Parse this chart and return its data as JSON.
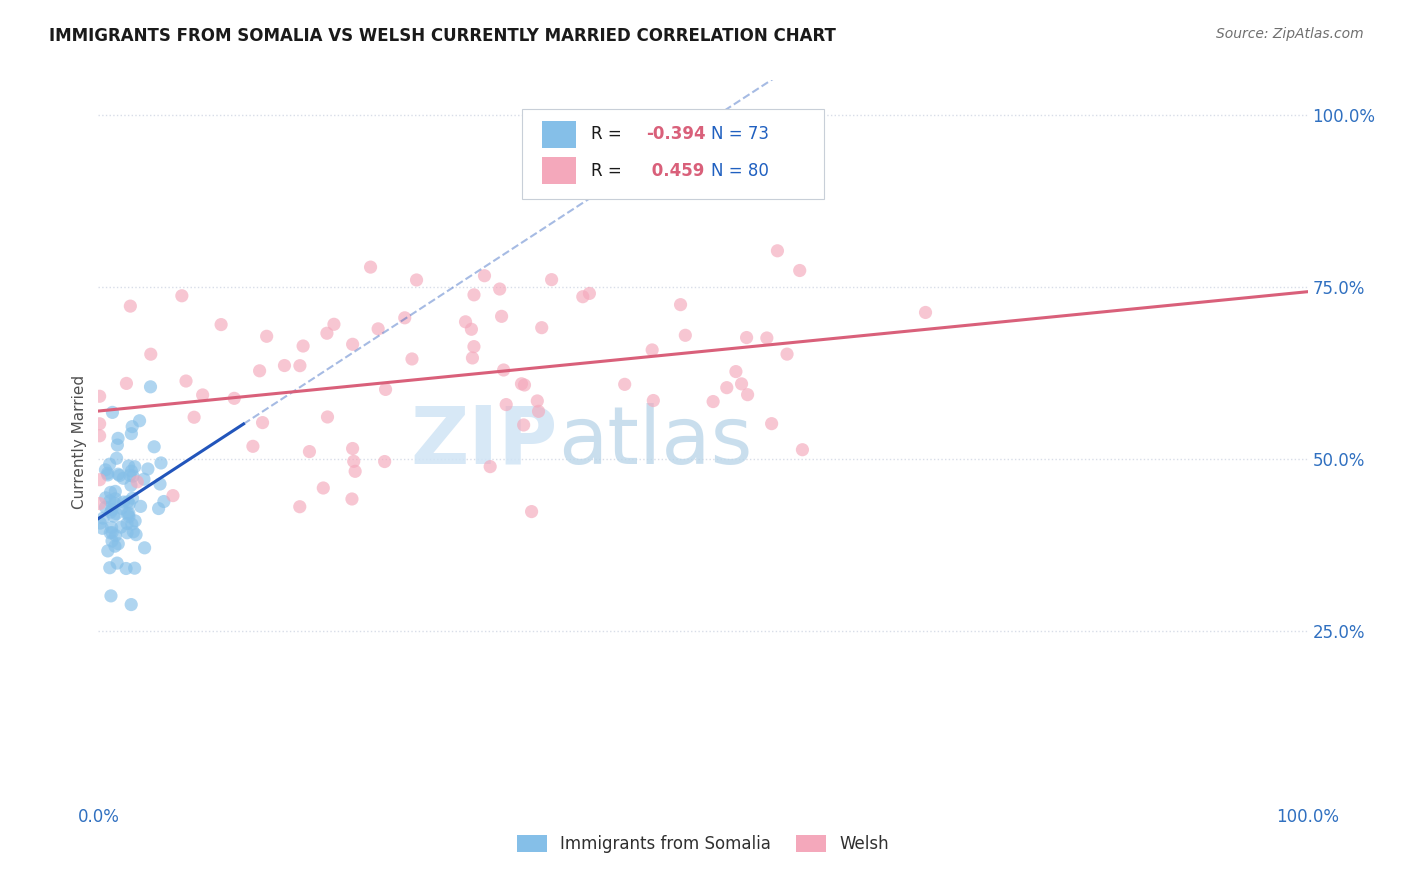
{
  "title": "IMMIGRANTS FROM SOMALIA VS WELSH CURRENTLY MARRIED CORRELATION CHART",
  "source": "Source: ZipAtlas.com",
  "ylabel": "Currently Married",
  "legend_labels": [
    "Immigrants from Somalia",
    "Welsh"
  ],
  "r_somalia": -0.394,
  "n_somalia": 73,
  "r_welsh": 0.459,
  "n_welsh": 80,
  "color_somalia": "#85bfe8",
  "color_welsh": "#f4a8bb",
  "line_color_somalia": "#2255bb",
  "line_color_welsh": "#d9607a",
  "background_color": "#ffffff",
  "grid_color": "#d8dde8",
  "r_text_color": "#d9607a",
  "n_text_color": "#2060c0",
  "label_text_color": "#202020",
  "tick_color": "#3070c0",
  "ylabel_color": "#505050"
}
